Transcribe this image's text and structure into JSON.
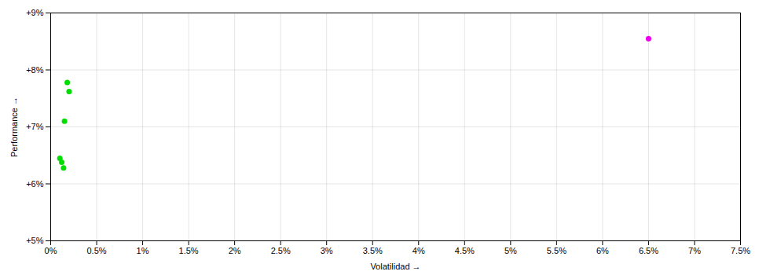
{
  "chart_data": {
    "type": "scatter",
    "xlabel": "Volatilidad",
    "ylabel": "Performance",
    "xlim": [
      0.0,
      0.075
    ],
    "ylim": [
      0.05,
      0.09
    ],
    "xticks": [
      {
        "value": 0.0,
        "label": "0%"
      },
      {
        "value": 0.005,
        "label": "0.5%"
      },
      {
        "value": 0.01,
        "label": "1%"
      },
      {
        "value": 0.015,
        "label": "1.5%"
      },
      {
        "value": 0.02,
        "label": "2%"
      },
      {
        "value": 0.025,
        "label": "2.5%"
      },
      {
        "value": 0.03,
        "label": "3%"
      },
      {
        "value": 0.035,
        "label": "3.5%"
      },
      {
        "value": 0.04,
        "label": "4%"
      },
      {
        "value": 0.045,
        "label": "4.5%"
      },
      {
        "value": 0.05,
        "label": "5%"
      },
      {
        "value": 0.055,
        "label": "5.5%"
      },
      {
        "value": 0.06,
        "label": "6%"
      },
      {
        "value": 0.065,
        "label": "6.5%"
      },
      {
        "value": 0.07,
        "label": "7%"
      },
      {
        "value": 0.075,
        "label": "7.5%"
      }
    ],
    "yticks": [
      {
        "value": 0.05,
        "label": "+5%"
      },
      {
        "value": 0.06,
        "label": "+6%"
      },
      {
        "value": 0.07,
        "label": "+7%"
      },
      {
        "value": 0.08,
        "label": "+8%"
      },
      {
        "value": 0.09,
        "label": "+9%"
      }
    ],
    "grid": true,
    "series": [
      {
        "color": "#00dd00",
        "x": [
          0.0018,
          0.002,
          0.0015,
          0.001,
          0.0012,
          0.0014
        ],
        "values": [
          0.0778,
          0.0762,
          0.071,
          0.0645,
          0.0638,
          0.0628
        ]
      },
      {
        "color": "#ee00ee",
        "x": [
          0.065
        ],
        "values": [
          0.0855
        ]
      }
    ]
  }
}
